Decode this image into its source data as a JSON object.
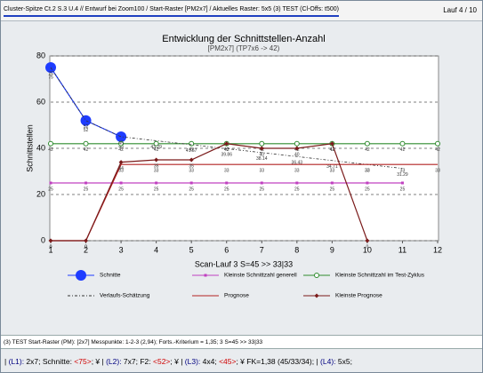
{
  "header": {
    "title": "Cluster-Spitze Ct.2  S.3 U.4 // Entwurf bei Zoom100 / Start-Raster [PM2x7] / Aktuelles Raster: 5x5 (3) TEST (Cl-Offs: t500)",
    "run": "Lauf 4 / 10"
  },
  "chart_data": {
    "type": "line",
    "title": "Entwicklung der Schnittstellen-Anzahl",
    "subtitle": "[PM2x7] (TP7x6 -> 42)",
    "y_label": "Schnittstellen",
    "x_label": "Scan-Lauf  3 S=45 >> 33|33",
    "x": [
      1,
      2,
      3,
      4,
      5,
      6,
      7,
      8,
      9,
      10,
      11,
      12
    ],
    "xlim": [
      1,
      12
    ],
    "xticks": [
      1,
      2,
      3,
      4,
      5,
      6,
      7,
      8,
      9,
      10,
      11,
      12
    ],
    "ylim": [
      0,
      80
    ],
    "yticks": [
      0,
      20,
      40,
      60,
      80
    ],
    "grid": true,
    "series": [
      {
        "name": "Schnitte",
        "color": "#1e3cff",
        "marker": "big-circle",
        "values": [
          75,
          52,
          45,
          null,
          null,
          null,
          null,
          null,
          null,
          null,
          null,
          null
        ]
      },
      {
        "name": "Kleinste Schnittzahl generell",
        "color": "#c040c0",
        "marker": "square",
        "values": [
          25,
          25,
          25,
          25,
          25,
          25,
          25,
          25,
          25,
          25,
          25,
          null
        ]
      },
      {
        "name": "Kleinste Schnittzahl im Test-Zyklus",
        "color": "#2e8b2e",
        "marker": "open-circle",
        "values": [
          42,
          42,
          42,
          42,
          42,
          42,
          42,
          42,
          42,
          42,
          42,
          42
        ]
      },
      {
        "name": "Verlaufs-Schätzung",
        "color": "#333333",
        "dashed": true,
        "values": [
          75,
          52,
          45,
          43.29,
          41.57,
          39.86,
          38.14,
          36.43,
          34.71,
          33,
          31.29,
          null
        ]
      },
      {
        "name": "Prognose",
        "color": "#b22222",
        "values": [
          0,
          0,
          33,
          33,
          33,
          33,
          33,
          33,
          33,
          33,
          33,
          33
        ]
      },
      {
        "name": "Kleinste Prognose",
        "color": "#7a1a1a",
        "marker": "diamond",
        "values": [
          0,
          0,
          34,
          35,
          35,
          42,
          40,
          40,
          42,
          0,
          null,
          null
        ]
      }
    ]
  },
  "info": "(3) TEST Start-Raster (PM): [2x7] Messpunkte: 1-2-3 (2,94); Forts.-Kriterium = 1,35;  3 S=45 >> 33|33",
  "status_bar": [
    {
      "text": "| ",
      "color": "#000000"
    },
    {
      "text": "(L1):",
      "color": "#000080"
    },
    {
      "text": " 2x7; Schnitte: ",
      "color": "#000000"
    },
    {
      "text": "<75>",
      "color": "#d00000"
    },
    {
      "text": "; ¥ | ",
      "color": "#000000"
    },
    {
      "text": "(L2):",
      "color": "#000080"
    },
    {
      "text": " 7x7; F2: ",
      "color": "#000000"
    },
    {
      "text": "<52>",
      "color": "#d00000"
    },
    {
      "text": "; ¥ | ",
      "color": "#000000"
    },
    {
      "text": "(L3):",
      "color": "#000080"
    },
    {
      "text": " 4x4; ",
      "color": "#000000"
    },
    {
      "text": "<45>",
      "color": "#d00000"
    },
    {
      "text": "; ¥ FK=1,38 (45/33/34); | ",
      "color": "#000000"
    },
    {
      "text": "(L4):",
      "color": "#000080"
    },
    {
      "text": " 5x5;",
      "color": "#000000"
    }
  ]
}
